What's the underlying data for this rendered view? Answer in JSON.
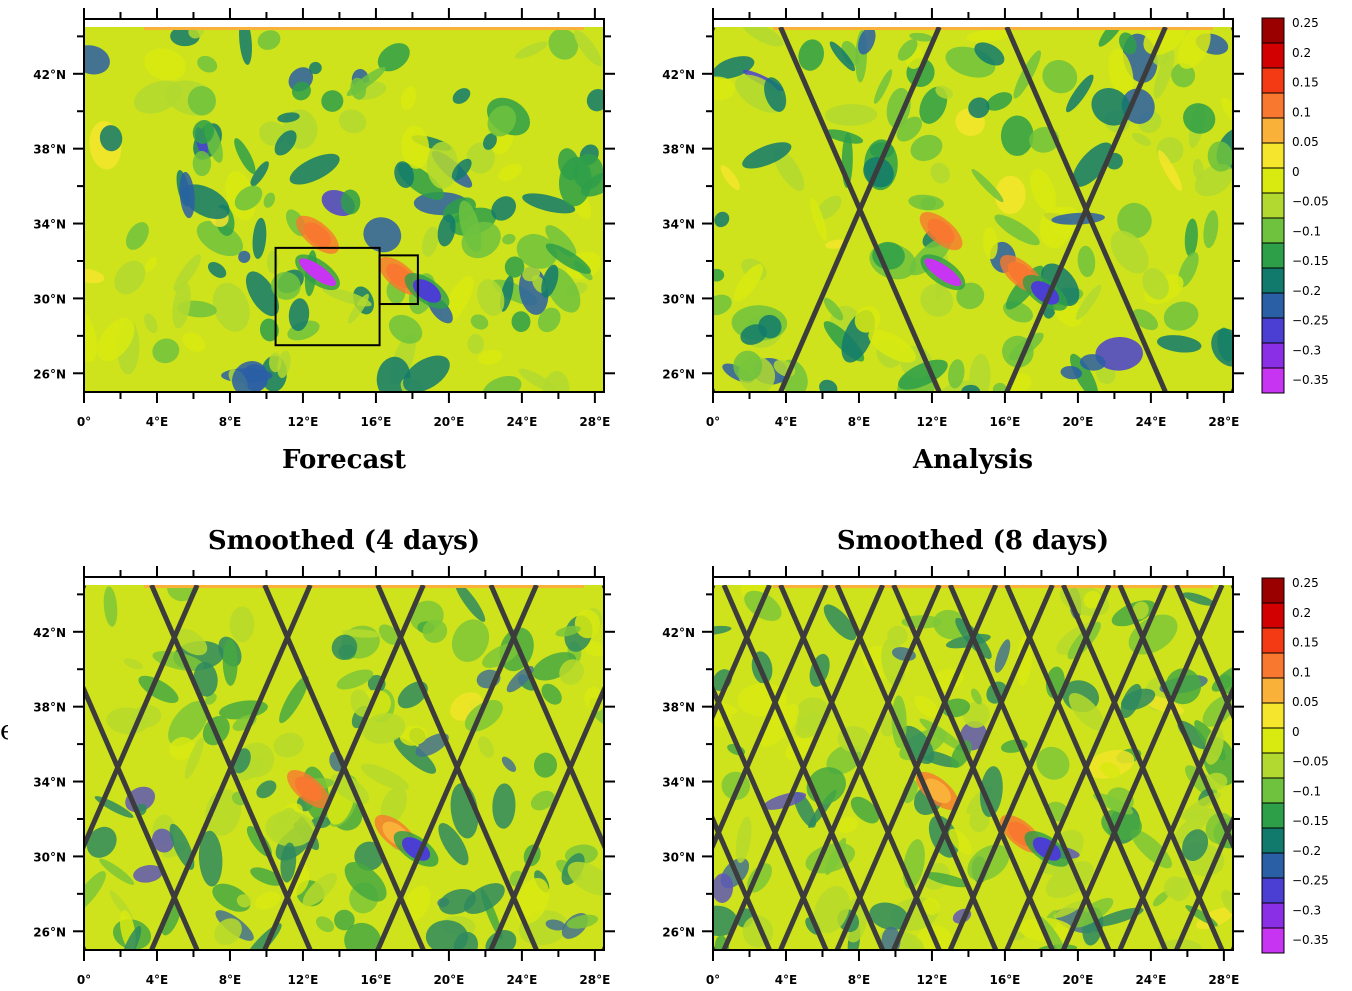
{
  "chart_data": [
    {
      "type": "heatmap",
      "panel": "forecast",
      "title": "",
      "xlabel": "Forecast",
      "x_ticks": [
        "0°",
        "4°E",
        "8°E",
        "12°E",
        "16°E",
        "20°E",
        "24°E",
        "28°E"
      ],
      "y_ticks": [
        "26°N",
        "30°N",
        "34°N",
        "38°N",
        "42°N"
      ],
      "xlim": [
        0,
        28.5
      ],
      "ylim": [
        25,
        44.5
      ],
      "annotations": [
        {
          "kind": "box",
          "lon": [
            10.5,
            16.2
          ],
          "lat": [
            27.5,
            32.7
          ]
        },
        {
          "kind": "box",
          "lon": [
            16.2,
            18.3
          ],
          "lat": [
            29.7,
            32.3
          ]
        }
      ],
      "features": [
        {
          "kind": "low",
          "lon": 12.8,
          "lat": 31.4,
          "value": -0.33
        },
        {
          "kind": "high",
          "lon": 12.8,
          "lat": 33.4,
          "value": 0.22
        },
        {
          "kind": "high",
          "lon": 17.3,
          "lat": 31.2,
          "value": 0.2
        },
        {
          "kind": "low",
          "lon": 18.8,
          "lat": 30.4,
          "value": -0.18
        }
      ]
    },
    {
      "type": "heatmap",
      "panel": "analysis",
      "title": "",
      "xlabel": "Analysis",
      "x_ticks": [
        "0°",
        "4°E",
        "8°E",
        "12°E",
        "16°E",
        "20°E",
        "24°E",
        "28°E"
      ],
      "y_ticks": [
        "26°N",
        "30°N",
        "34°N",
        "38°N",
        "42°N"
      ],
      "xlim": [
        0,
        28.5
      ],
      "ylim": [
        25,
        44.5
      ],
      "ground_tracks": 3,
      "features": [
        {
          "kind": "low",
          "lon": 12.6,
          "lat": 31.4,
          "value": -0.33
        },
        {
          "kind": "high",
          "lon": 12.5,
          "lat": 33.6,
          "value": 0.22
        },
        {
          "kind": "high",
          "lon": 16.9,
          "lat": 31.3,
          "value": 0.2
        },
        {
          "kind": "low",
          "lon": 18.2,
          "lat": 30.3,
          "value": -0.18
        }
      ]
    },
    {
      "type": "heatmap",
      "panel": "smoothed-4",
      "title": "Smoothed (4 days)",
      "xlabel": "",
      "x_ticks": [
        "0°",
        "4°E",
        "8°E",
        "12°E",
        "16°E",
        "20°E",
        "24°E",
        "28°E"
      ],
      "y_ticks": [
        "26°N",
        "30°N",
        "34°N",
        "38°N",
        "42°N"
      ],
      "xlim": [
        0,
        28.5
      ],
      "ylim": [
        25,
        44.5
      ],
      "ground_tracks": 6,
      "features": [
        {
          "kind": "high",
          "lon": 12.3,
          "lat": 33.6,
          "value": 0.2
        },
        {
          "kind": "high",
          "lon": 17.1,
          "lat": 31.2,
          "value": 0.17
        },
        {
          "kind": "low",
          "lon": 18.2,
          "lat": 30.4,
          "value": -0.15
        }
      ]
    },
    {
      "type": "heatmap",
      "panel": "smoothed-8",
      "title": "Smoothed (8 days)",
      "xlabel": "",
      "x_ticks": [
        "0°",
        "4°E",
        "8°E",
        "12°E",
        "16°E",
        "20°E",
        "24°E",
        "28°E"
      ],
      "y_ticks": [
        "26°N",
        "30°N",
        "34°N",
        "38°N",
        "42°N"
      ],
      "xlim": [
        0,
        28.5
      ],
      "ylim": [
        25,
        44.5
      ],
      "ground_tracks": 12,
      "features": [
        {
          "kind": "high",
          "lon": 12.3,
          "lat": 33.5,
          "value": 0.18
        },
        {
          "kind": "high",
          "lon": 16.9,
          "lat": 31.2,
          "value": 0.2
        },
        {
          "kind": "low",
          "lon": 18.3,
          "lat": 30.4,
          "value": -0.15
        }
      ]
    }
  ],
  "colorbar": {
    "labels": [
      "0.25",
      "0.2",
      "0.15",
      "0.1",
      "0.05",
      "0",
      "−0.05",
      "−0.1",
      "−0.15",
      "−0.2",
      "−0.25",
      "−0.3",
      "−0.35"
    ],
    "colors": [
      "#9a0000",
      "#d20000",
      "#f43a14",
      "#f87830",
      "#f9b13a",
      "#f5e52c",
      "#d9ea10",
      "#b2d92f",
      "#6fc23e",
      "#2e9f49",
      "#127a6c",
      "#2a5fa6",
      "#4a3fd2",
      "#8b2fe6",
      "#c734f2"
    ]
  },
  "stray_text": "e"
}
